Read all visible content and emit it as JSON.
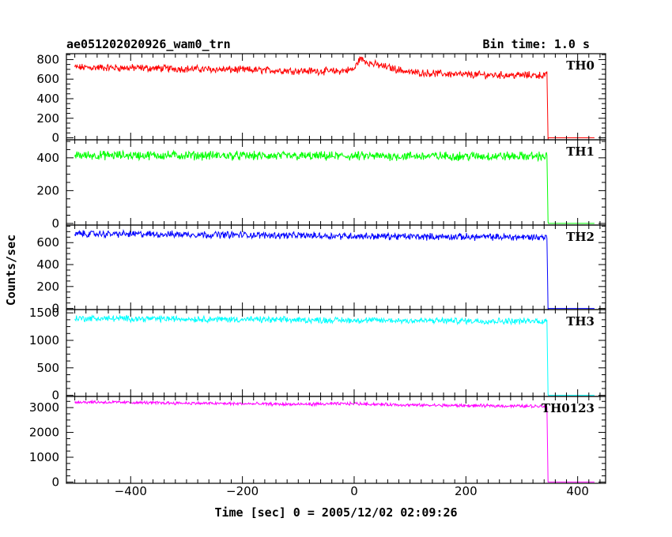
{
  "chart_data": {
    "type": "line",
    "title": "ae051202020926_wam0_trn",
    "subtitle": "Bin time: 1.0 s",
    "xlabel": "Time [sec] 0 = 2005/12/02 02:09:26",
    "ylabel": "Counts/sec",
    "xlim": [
      -515,
      450
    ],
    "x_ticks": [
      -400,
      -200,
      0,
      200,
      400
    ],
    "x_start": -500,
    "x_drop": 347,
    "x_end": 430,
    "panels": [
      {
        "name": "TH0",
        "color": "#ff0000",
        "ylim": [
          -20,
          860
        ],
        "yticks": [
          0,
          200,
          400,
          600,
          800
        ],
        "points": [
          [
            -500,
            720
          ],
          [
            -400,
            715
          ],
          [
            -300,
            705
          ],
          [
            -200,
            695
          ],
          [
            -100,
            685
          ],
          [
            -30,
            680
          ],
          [
            0,
            700
          ],
          [
            10,
            810
          ],
          [
            30,
            760
          ],
          [
            100,
            670
          ],
          [
            200,
            645
          ],
          [
            300,
            640
          ],
          [
            345,
            640
          ],
          [
            347,
            0
          ],
          [
            430,
            0
          ]
        ],
        "noise": 30
      },
      {
        "name": "TH1",
        "color": "#00ff00",
        "ylim": [
          -10,
          510
        ],
        "yticks": [
          0,
          200,
          400
        ],
        "points": [
          [
            -500,
            415
          ],
          [
            -300,
            415
          ],
          [
            -100,
            410
          ],
          [
            100,
            410
          ],
          [
            300,
            410
          ],
          [
            345,
            410
          ],
          [
            347,
            0
          ],
          [
            430,
            0
          ]
        ],
        "noise": 22
      },
      {
        "name": "TH2",
        "color": "#0000ff",
        "ylim": [
          -10,
          760
        ],
        "yticks": [
          0,
          200,
          400,
          600
        ],
        "points": [
          [
            -500,
            680
          ],
          [
            -300,
            675
          ],
          [
            -100,
            665
          ],
          [
            100,
            655
          ],
          [
            300,
            650
          ],
          [
            345,
            650
          ],
          [
            347,
            0
          ],
          [
            430,
            0
          ]
        ],
        "noise": 25
      },
      {
        "name": "TH3",
        "color": "#00ffff",
        "ylim": [
          -20,
          1560
        ],
        "yticks": [
          0,
          500,
          1000,
          1500
        ],
        "points": [
          [
            -500,
            1400
          ],
          [
            -300,
            1390
          ],
          [
            -100,
            1370
          ],
          [
            100,
            1360
          ],
          [
            300,
            1350
          ],
          [
            345,
            1350
          ],
          [
            347,
            0
          ],
          [
            430,
            0
          ]
        ],
        "noise": 45
      },
      {
        "name": "TH0123",
        "color": "#ff00ff",
        "ylim": [
          -50,
          3450
        ],
        "yticks": [
          0,
          1000,
          2000,
          3000
        ],
        "points": [
          [
            -500,
            3230
          ],
          [
            -300,
            3180
          ],
          [
            -100,
            3130
          ],
          [
            0,
            3160
          ],
          [
            100,
            3100
          ],
          [
            300,
            3060
          ],
          [
            345,
            3060
          ],
          [
            347,
            0
          ],
          [
            430,
            0
          ]
        ],
        "noise": 50
      }
    ]
  }
}
